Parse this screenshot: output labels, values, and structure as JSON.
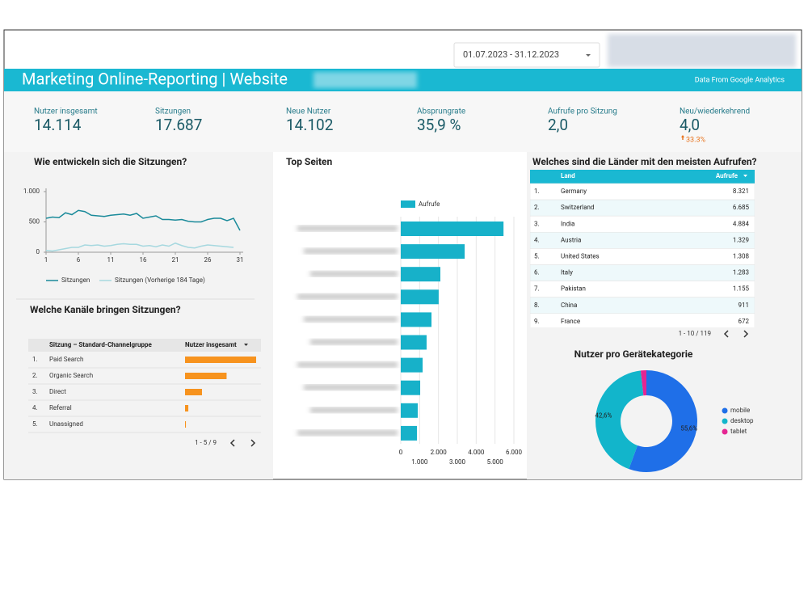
{
  "header": {
    "date_range": "01.07.2023 - 31.12.2023",
    "title": "Marketing Online-Reporting | Website",
    "source": "Data From Google Analytics"
  },
  "kpis": [
    {
      "label": "Nutzer insgesamt",
      "value": "14.114"
    },
    {
      "label": "Sitzungen",
      "value": "17.687"
    },
    {
      "label": "Neue Nutzer",
      "value": "14.102"
    },
    {
      "label": "Absprungrate",
      "value": "35,9 %"
    },
    {
      "label": "Aufrufe pro Sitzung",
      "value": "2,0"
    },
    {
      "label": "Neu/wiederkehrend",
      "value": "4,0",
      "change": "33.3%"
    }
  ],
  "chart_data": [
    {
      "type": "line",
      "title": "Wie entwickeln sich die Sitzungen?",
      "x": [
        1,
        2,
        3,
        4,
        5,
        6,
        7,
        8,
        9,
        10,
        11,
        12,
        13,
        14,
        15,
        16,
        17,
        18,
        19,
        20,
        21,
        22,
        23,
        24,
        25,
        26,
        27,
        28,
        29,
        30,
        31
      ],
      "xlim": [
        1,
        31
      ],
      "xticks": [
        1,
        6,
        11,
        16,
        21,
        26,
        31
      ],
      "ylim": [
        0,
        1000
      ],
      "yticks": [
        0,
        500,
        {
          "value": 1000,
          "label": "1.000"
        }
      ],
      "series": [
        {
          "name": "Sitzungen",
          "color": "#1a8a9a",
          "values": [
            560,
            580,
            570,
            650,
            620,
            690,
            670,
            610,
            600,
            590,
            610,
            620,
            630,
            610,
            640,
            560,
            580,
            600,
            540,
            540,
            530,
            540,
            510,
            500,
            500,
            540,
            560,
            560,
            520,
            560,
            360
          ]
        },
        {
          "name": "Sitzungen (Vorherige 184 Tage)",
          "color": "#a6d8df",
          "values": [
            30,
            20,
            40,
            60,
            80,
            80,
            120,
            110,
            120,
            100,
            110,
            130,
            140,
            130,
            130,
            100,
            110,
            90,
            120,
            100,
            150,
            110,
            80,
            70,
            100,
            120,
            110,
            100,
            90,
            80,
            null
          ]
        }
      ]
    },
    {
      "type": "bar",
      "title": "Welche Kanäle bringen Sitzungen?",
      "columns": [
        "Sitzung – Standard-Channelgruppe",
        "Nutzer insgesamt"
      ],
      "row_numbers": [
        "1.",
        "2.",
        "3.",
        "4.",
        "5."
      ],
      "categories": [
        "Paid Search",
        "Organic Search",
        "Direct",
        "Referral",
        "Unassigned"
      ],
      "values": [
        6500,
        3800,
        1550,
        300,
        80
      ],
      "color": "#f7931e",
      "pagination": "1 - 5 / 9"
    },
    {
      "type": "bar",
      "title": "Top Seiten",
      "categories": [
        null,
        null,
        null,
        null,
        null,
        null,
        null,
        null,
        null,
        null
      ],
      "series": [
        {
          "name": "Aufrufe",
          "color": "#17b1c9",
          "values": [
            5450,
            3390,
            2100,
            2010,
            1630,
            1370,
            1160,
            1030,
            900,
            860
          ]
        }
      ],
      "xlim": [
        0,
        6000
      ],
      "xticks": [
        0,
        {
          "value": 1000,
          "label": "1.000"
        },
        {
          "value": 2000,
          "label": "2.000"
        },
        {
          "value": 3000,
          "label": "3.000"
        },
        {
          "value": 4000,
          "label": "4.000"
        },
        {
          "value": 5000,
          "label": "5.000"
        },
        {
          "value": 6000,
          "label": "6.000"
        }
      ]
    },
    {
      "type": "pie",
      "title": "Nutzer pro Gerätekategorie",
      "categories": [
        "mobile",
        "desktop",
        "tablet"
      ],
      "values": [
        55.6,
        42.6,
        1.8
      ],
      "value_labels": [
        "55,6%",
        "42,6%",
        null
      ],
      "colors": [
        "#1f6fe8",
        "#12b5cb",
        "#e52592"
      ]
    }
  ],
  "countries": {
    "title": "Welches sind die Länder mit den meisten Aufrufen?",
    "columns": [
      "Land",
      "Aufrufe"
    ],
    "rows": [
      [
        "1.",
        "Germany",
        "8.321"
      ],
      [
        "2.",
        "Switzerland",
        "6.685"
      ],
      [
        "3.",
        "India",
        "4.884"
      ],
      [
        "4.",
        "Austria",
        "1.329"
      ],
      [
        "5.",
        "United States",
        "1.308"
      ],
      [
        "6.",
        "Italy",
        "1.283"
      ],
      [
        "7.",
        "Pakistan",
        "1.155"
      ],
      [
        "8.",
        "China",
        "911"
      ],
      [
        "9.",
        "France",
        "672"
      ]
    ],
    "pagination": "1 - 10 / 119"
  }
}
